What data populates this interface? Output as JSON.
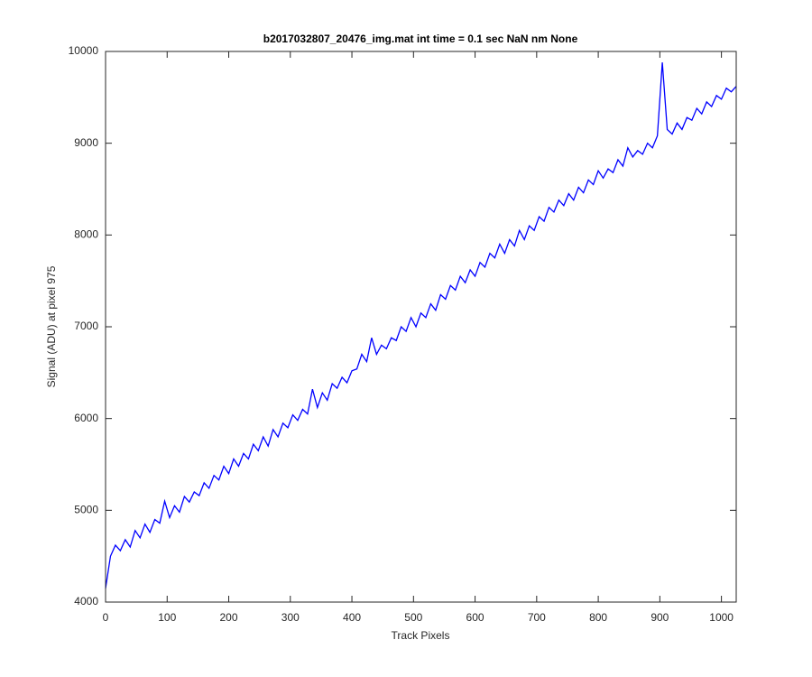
{
  "chart_data": {
    "type": "line",
    "title": "b2017032807_20476_img.mat int time = 0.1 sec  NaN nm None",
    "x_label": "Track Pixels",
    "y_label": "Signal (ADU) at pixel 975",
    "xlim": [
      0,
      1024
    ],
    "ylim": [
      4000,
      10000
    ],
    "xticks": [
      0,
      100,
      200,
      300,
      400,
      500,
      600,
      700,
      800,
      900,
      1000
    ],
    "yticks": [
      4000,
      5000,
      6000,
      7000,
      8000,
      9000,
      10000
    ],
    "x": [
      0,
      8,
      16,
      24,
      32,
      40,
      48,
      56,
      64,
      72,
      80,
      88,
      96,
      104,
      112,
      120,
      128,
      136,
      144,
      152,
      160,
      168,
      176,
      184,
      192,
      200,
      208,
      216,
      224,
      232,
      240,
      248,
      256,
      264,
      272,
      280,
      288,
      296,
      304,
      312,
      320,
      328,
      336,
      344,
      352,
      360,
      368,
      376,
      384,
      392,
      400,
      408,
      416,
      424,
      432,
      440,
      448,
      456,
      464,
      472,
      480,
      488,
      496,
      504,
      512,
      520,
      528,
      536,
      544,
      552,
      560,
      568,
      576,
      584,
      592,
      600,
      608,
      616,
      624,
      632,
      640,
      648,
      656,
      664,
      672,
      680,
      688,
      696,
      704,
      712,
      720,
      728,
      736,
      744,
      752,
      760,
      768,
      776,
      784,
      792,
      800,
      808,
      816,
      824,
      832,
      840,
      848,
      856,
      864,
      872,
      880,
      888,
      896,
      904,
      912,
      920,
      928,
      936,
      944,
      952,
      960,
      968,
      976,
      984,
      992,
      1000,
      1008,
      1016,
      1024
    ],
    "series": [
      {
        "name": "signal",
        "color": "#0000ff",
        "values": [
          4150,
          4500,
          4620,
          4560,
          4680,
          4600,
          4780,
          4700,
          4850,
          4760,
          4900,
          4860,
          5100,
          4920,
          5050,
          4980,
          5150,
          5090,
          5200,
          5160,
          5300,
          5240,
          5380,
          5330,
          5480,
          5400,
          5560,
          5480,
          5620,
          5560,
          5720,
          5650,
          5800,
          5700,
          5880,
          5800,
          5950,
          5900,
          6040,
          5980,
          6100,
          6050,
          6320,
          6120,
          6280,
          6200,
          6380,
          6330,
          6450,
          6390,
          6520,
          6540,
          6700,
          6620,
          6880,
          6700,
          6800,
          6760,
          6880,
          6850,
          7000,
          6950,
          7100,
          7000,
          7150,
          7100,
          7250,
          7180,
          7350,
          7300,
          7450,
          7400,
          7550,
          7480,
          7620,
          7550,
          7700,
          7650,
          7800,
          7750,
          7900,
          7800,
          7950,
          7880,
          8050,
          7950,
          8100,
          8050,
          8200,
          8150,
          8300,
          8250,
          8380,
          8320,
          8450,
          8380,
          8520,
          8460,
          8600,
          8550,
          8700,
          8620,
          8720,
          8680,
          8820,
          8750,
          8950,
          8850,
          8920,
          8880,
          9000,
          8950,
          9080,
          9880,
          9150,
          9100,
          9220,
          9150,
          9280,
          9250,
          9380,
          9320,
          9450,
          9400,
          9520,
          9480,
          9600,
          9560,
          9620
        ]
      }
    ]
  }
}
